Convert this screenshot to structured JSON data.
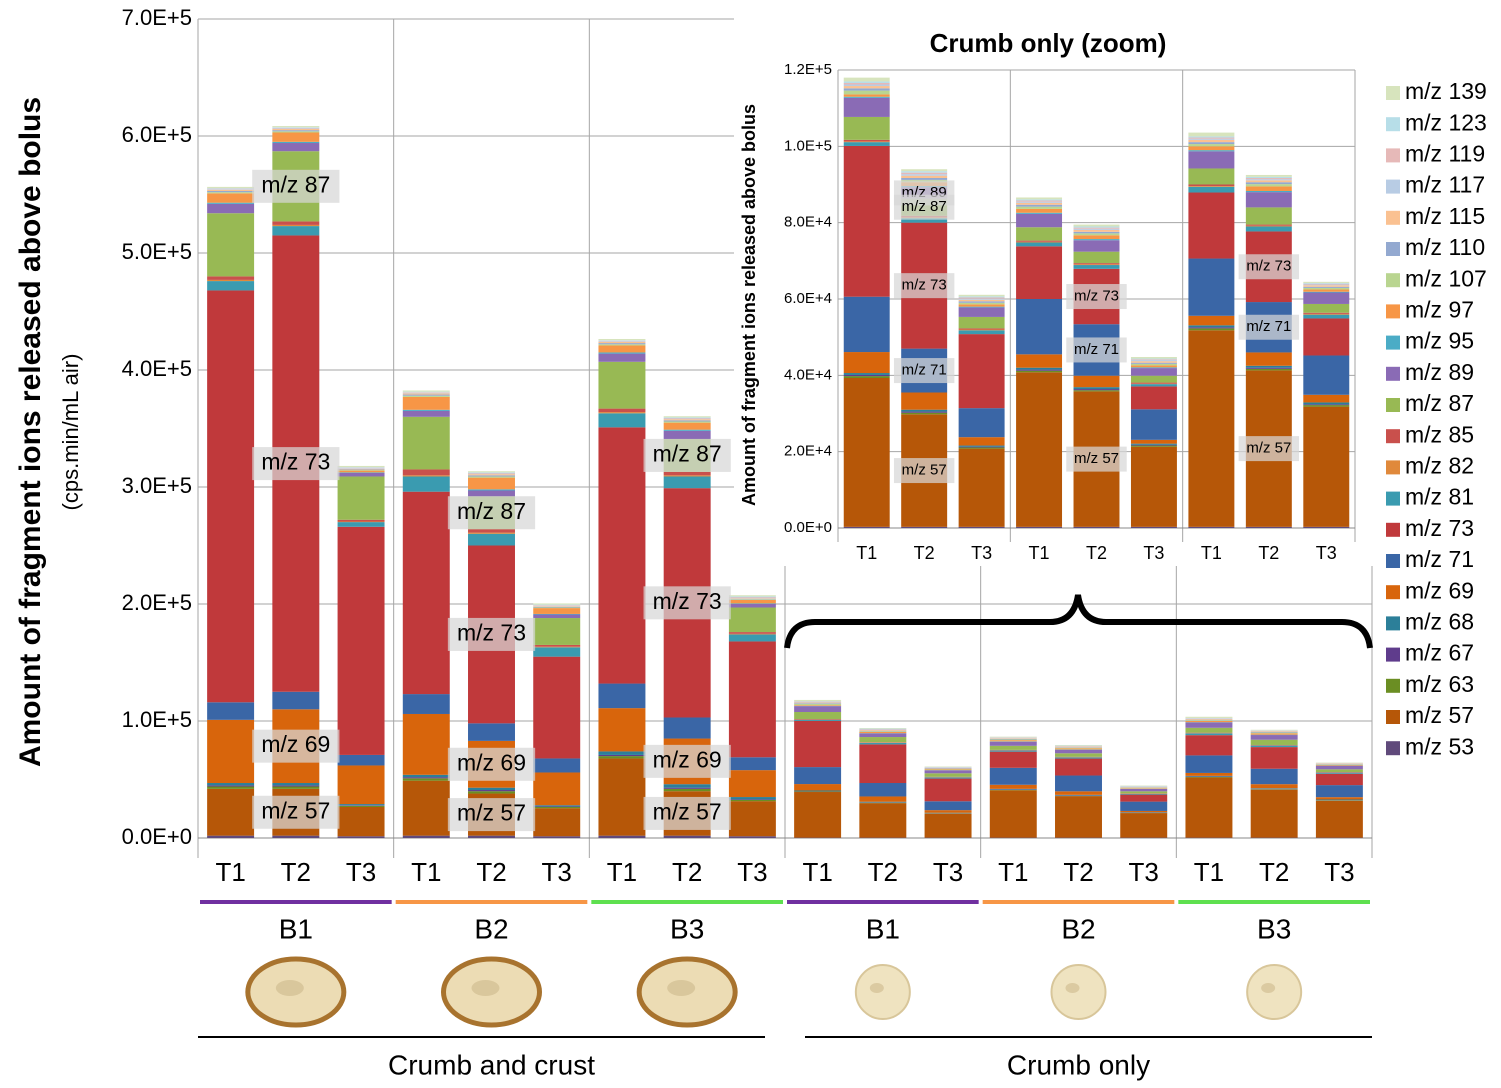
{
  "chart_data": [
    {
      "type": "bar",
      "stacked": true,
      "y_label": "Amount of fragment ions released above bolus",
      "y_sublabel": "(cps.min/mL air)",
      "categories": [
        "T1",
        "T2",
        "T3",
        "T1",
        "T2",
        "T3",
        "T1",
        "T2",
        "T3",
        "T1",
        "T2",
        "T3",
        "T1",
        "T2",
        "T3",
        "T1",
        "T2",
        "T3"
      ],
      "groups": [
        "B1",
        "B2",
        "B3",
        "B1",
        "B2",
        "B3"
      ],
      "group_colors": [
        "#7030a0",
        "#f79646",
        "#5ee04f",
        "#7030a0",
        "#f79646",
        "#5ee04f"
      ],
      "sections": [
        "Crumb and crust",
        "Crumb only"
      ],
      "annotations": [
        "m/z 87",
        "m/z 73",
        "m/z 69",
        "m/z 57",
        "m/z 87",
        "m/z 73",
        "m/z 69",
        "m/z 57",
        "m/z 87",
        "m/z 73",
        "m/z 69",
        "m/z 57"
      ],
      "ylim": [
        0,
        700000
      ],
      "yticks": [
        {
          "value": 0,
          "label": "0.0E+0"
        },
        {
          "value": 100000,
          "label": "1.0E+5"
        },
        {
          "value": 200000,
          "label": "2.0E+5"
        },
        {
          "value": 300000,
          "label": "3.0E+5"
        },
        {
          "value": 400000,
          "label": "4.0E+5"
        },
        {
          "value": 500000,
          "label": "5.0E+5"
        },
        {
          "value": 600000,
          "label": "6.0E+5"
        },
        {
          "value": 700000,
          "label": "7.0E+5"
        }
      ],
      "grid": true,
      "legend": "right",
      "series": [
        {
          "name": "m/z 53",
          "color": "#604a7b",
          "values": [
            2000,
            2000,
            1500,
            2000,
            2000,
            1500,
            2000,
            2000,
            1500,
            300,
            300,
            300,
            300,
            300,
            300,
            300,
            300,
            300
          ]
        },
        {
          "name": "m/z 57",
          "color": "#b65708",
          "values": [
            40000,
            40000,
            25000,
            47000,
            36000,
            24000,
            66000,
            38000,
            30000,
            39000,
            29500,
            20500,
            40500,
            35500,
            21000,
            51500,
            41000,
            31500
          ]
        },
        {
          "name": "m/z 63",
          "color": "#6b8e23",
          "values": [
            2000,
            2000,
            1000,
            2000,
            2000,
            1000,
            2000,
            2000,
            1000,
            500,
            400,
            300,
            400,
            300,
            300,
            500,
            400,
            400
          ]
        },
        {
          "name": "m/z 67",
          "color": "#5f3c8c",
          "values": [
            1000,
            1000,
            500,
            1000,
            1000,
            500,
            1000,
            1000,
            500,
            300,
            300,
            200,
            300,
            300,
            200,
            300,
            300,
            200
          ]
        },
        {
          "name": "m/z 68",
          "color": "#2c7f99",
          "values": [
            2000,
            2000,
            1000,
            2000,
            2000,
            1000,
            3000,
            3000,
            2000,
            500,
            500,
            300,
            500,
            500,
            300,
            500,
            500,
            500
          ]
        },
        {
          "name": "m/z 69",
          "color": "#d8650c",
          "values": [
            54000,
            63000,
            33000,
            52000,
            40000,
            28000,
            37000,
            39000,
            23000,
            5500,
            4500,
            2200,
            3500,
            3000,
            1000,
            2500,
            3500,
            2000
          ]
        },
        {
          "name": "m/z 71",
          "color": "#3a66a6",
          "values": [
            15000,
            15000,
            9000,
            17000,
            15000,
            12000,
            21000,
            18000,
            11000,
            14500,
            11500,
            7600,
            14500,
            13500,
            8000,
            15000,
            13200,
            10300
          ]
        },
        {
          "name": "m/z 73",
          "color": "#c0393b",
          "values": [
            352000,
            390000,
            195000,
            173000,
            152000,
            87000,
            219000,
            196000,
            99000,
            39500,
            33000,
            19400,
            13800,
            14500,
            6000,
            17300,
            18500,
            9700
          ]
        },
        {
          "name": "m/z 81",
          "color": "#3a9bb0",
          "values": [
            8000,
            8000,
            4000,
            13000,
            10000,
            8000,
            12000,
            10000,
            6000,
            1000,
            1200,
            1000,
            1000,
            1000,
            600,
            1500,
            1300,
            1000
          ]
        },
        {
          "name": "m/z 82",
          "color": "#e0893b",
          "values": [
            1000,
            1000,
            500,
            1000,
            1000,
            500,
            1000,
            1000,
            500,
            200,
            200,
            200,
            200,
            200,
            100,
            200,
            200,
            200
          ]
        },
        {
          "name": "m/z 85",
          "color": "#c9504c",
          "values": [
            3000,
            3000,
            1500,
            5000,
            3000,
            1500,
            3000,
            3000,
            1500,
            400,
            400,
            300,
            300,
            300,
            300,
            400,
            300,
            300
          ]
        },
        {
          "name": "m/z 87",
          "color": "#98b954",
          "values": [
            54000,
            60000,
            37000,
            45000,
            28000,
            23000,
            40000,
            28000,
            21000,
            6000,
            4500,
            3000,
            3500,
            3000,
            1800,
            4200,
            4500,
            2300
          ]
        },
        {
          "name": "m/z 89",
          "color": "#8a6bb5",
          "values": [
            8000,
            7000,
            3000,
            5000,
            5000,
            3000,
            7000,
            7000,
            3000,
            5000,
            3000,
            2500,
            3500,
            3000,
            2000,
            4500,
            4000,
            3000
          ]
        },
        {
          "name": "m/z 95",
          "color": "#4bacc6",
          "values": [
            1000,
            1000,
            500,
            1000,
            1000,
            500,
            1000,
            1000,
            500,
            300,
            300,
            200,
            300,
            300,
            200,
            300,
            300,
            200
          ]
        },
        {
          "name": "m/z 97",
          "color": "#f79646",
          "values": [
            8000,
            8000,
            1500,
            11000,
            10000,
            5000,
            6000,
            6000,
            3000,
            600,
            1000,
            600,
            1000,
            1000,
            500,
            1000,
            1200,
            600
          ]
        },
        {
          "name": "m/z 107",
          "color": "#b9d590",
          "values": [
            1000,
            1000,
            500,
            1000,
            1000,
            500,
            1000,
            1000,
            500,
            1000,
            600,
            400,
            600,
            500,
            400,
            600,
            600,
            400
          ]
        },
        {
          "name": "m/z 110",
          "color": "#93a9d0",
          "values": [
            1000,
            1000,
            500,
            1000,
            1000,
            500,
            1000,
            1000,
            500,
            600,
            500,
            400,
            500,
            400,
            300,
            500,
            500,
            300
          ]
        },
        {
          "name": "m/z 115",
          "color": "#fac191",
          "values": [
            1000,
            1000,
            500,
            1000,
            1000,
            500,
            1000,
            1000,
            500,
            600,
            600,
            400,
            500,
            500,
            400,
            600,
            500,
            400
          ]
        },
        {
          "name": "m/z 117",
          "color": "#b8cce4",
          "values": [
            500,
            500,
            500,
            500,
            500,
            500,
            500,
            500,
            500,
            400,
            400,
            300,
            300,
            300,
            300,
            300,
            300,
            200
          ]
        },
        {
          "name": "m/z 119",
          "color": "#e6b9b8",
          "values": [
            500,
            500,
            500,
            500,
            500,
            500,
            500,
            500,
            500,
            400,
            400,
            300,
            300,
            300,
            200,
            300,
            300,
            200
          ]
        },
        {
          "name": "m/z 123",
          "color": "#b7dee8",
          "values": [
            500,
            500,
            500,
            500,
            500,
            500,
            500,
            500,
            500,
            400,
            400,
            300,
            300,
            300,
            200,
            300,
            300,
            200
          ]
        },
        {
          "name": "m/z 139",
          "color": "#d7e4bd",
          "values": [
            1000,
            1000,
            1000,
            1000,
            1000,
            1000,
            1000,
            1000,
            1000,
            1000,
            500,
            400,
            500,
            500,
            400,
            1000,
            500,
            300
          ]
        }
      ]
    },
    {
      "type": "bar",
      "stacked": true,
      "title": "Crumb only (zoom)",
      "y_label": "Amount of fragment ions released above bolus",
      "categories": [
        "T1",
        "T2",
        "T3",
        "T1",
        "T2",
        "T3",
        "T1",
        "T2",
        "T3"
      ],
      "annotations": [
        "m/z 89",
        "m/z 87",
        "m/z 73",
        "m/z 71",
        "m/z 57",
        "m/z 73",
        "m/z 71",
        "m/z 57",
        "m/z 73",
        "m/z 71",
        "m/z 57"
      ],
      "ylim": [
        0,
        120000
      ],
      "yticks": [
        {
          "value": 0,
          "label": "0.0E+0"
        },
        {
          "value": 20000,
          "label": "2.0E+4"
        },
        {
          "value": 40000,
          "label": "4.0E+4"
        },
        {
          "value": 60000,
          "label": "6.0E+4"
        },
        {
          "value": 80000,
          "label": "8.0E+4"
        },
        {
          "value": 100000,
          "label": "1.0E+5"
        },
        {
          "value": 120000,
          "label": "1.2E+5"
        }
      ],
      "grid": true
    }
  ]
}
